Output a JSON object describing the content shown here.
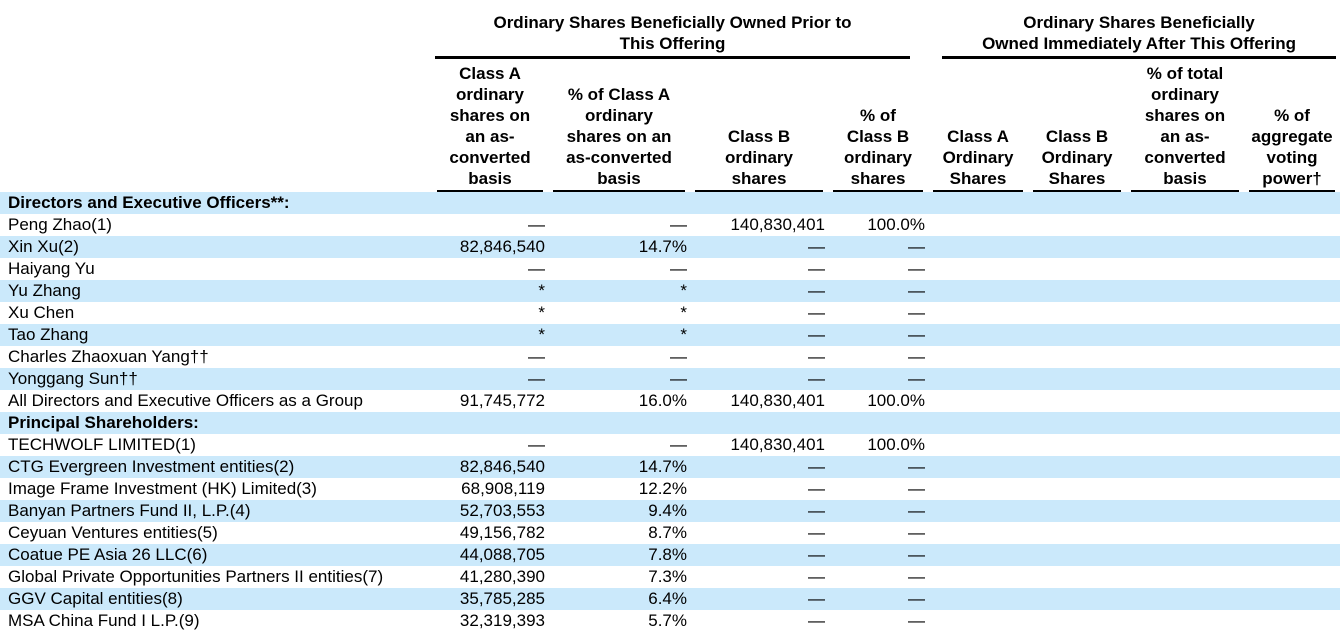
{
  "document": {
    "title": "Beneficial Ownership Table",
    "kind": "share-ownership-table"
  },
  "colors": {
    "row_highlight": "#cbe9fb",
    "text": "#000000",
    "rule": "#000000"
  },
  "header": {
    "group_prior": "Ordinary Shares Beneficially Owned Prior to\nThis Offering",
    "group_after": "Ordinary Shares Beneficially\nOwned Immediately After This Offering",
    "columns": [
      "Class A\nordinary\nshares on\nan as-\nconverted\nbasis",
      "% of Class A\nordinary\nshares on an\nas-converted\nbasis",
      "Class B\nordinary\nshares",
      "% of\nClass B\nordinary\nshares",
      "Class A\nOrdinary\nShares",
      "Class B\nOrdinary\nShares",
      "% of total\nordinary\nshares on\nan as-\nconverted\nbasis",
      "% of\naggregate\nvoting\npower†"
    ]
  },
  "table": {
    "rows": [
      {
        "section": "Directors and Executive Officers**:",
        "highlighted": true
      },
      {
        "name": "Peng Zhao(1)",
        "values": [
          "—",
          "—",
          "140,830,401",
          "100.0%",
          "",
          "",
          "",
          ""
        ],
        "highlighted": false
      },
      {
        "name": "Xin Xu(2)",
        "values": [
          "82,846,540",
          "14.7%",
          "—",
          "—",
          "",
          "",
          "",
          ""
        ],
        "highlighted": true
      },
      {
        "name": "Haiyang Yu",
        "values": [
          "—",
          "—",
          "—",
          "—",
          "",
          "",
          "",
          ""
        ],
        "highlighted": false
      },
      {
        "name": "Yu Zhang",
        "values": [
          "*",
          "*",
          "—",
          "—",
          "",
          "",
          "",
          ""
        ],
        "highlighted": true
      },
      {
        "name": "Xu Chen",
        "values": [
          "*",
          "*",
          "—",
          "—",
          "",
          "",
          "",
          ""
        ],
        "highlighted": false
      },
      {
        "name": "Tao Zhang",
        "values": [
          "*",
          "*",
          "—",
          "—",
          "",
          "",
          "",
          ""
        ],
        "highlighted": true
      },
      {
        "name": "Charles Zhaoxuan Yang††",
        "values": [
          "—",
          "—",
          "—",
          "—",
          "",
          "",
          "",
          ""
        ],
        "highlighted": false
      },
      {
        "name": "Yonggang Sun††",
        "values": [
          "—",
          "—",
          "—",
          "—",
          "",
          "",
          "",
          ""
        ],
        "highlighted": true
      },
      {
        "name": "All Directors and Executive Officers as a Group",
        "values": [
          "91,745,772",
          "16.0%",
          "140,830,401",
          "100.0%",
          "",
          "",
          "",
          ""
        ],
        "highlighted": false
      },
      {
        "section": "Principal Shareholders:",
        "highlighted": true
      },
      {
        "name": "TECHWOLF LIMITED(1)",
        "values": [
          "—",
          "—",
          "140,830,401",
          "100.0%",
          "",
          "",
          "",
          ""
        ],
        "highlighted": false
      },
      {
        "name": "CTG Evergreen Investment entities(2)",
        "values": [
          "82,846,540",
          "14.7%",
          "—",
          "—",
          "",
          "",
          "",
          ""
        ],
        "highlighted": true
      },
      {
        "name": "Image Frame Investment (HK) Limited(3)",
        "values": [
          "68,908,119",
          "12.2%",
          "—",
          "—",
          "",
          "",
          "",
          ""
        ],
        "highlighted": false
      },
      {
        "name": "Banyan Partners Fund II, L.P.(4)",
        "values": [
          "52,703,553",
          "9.4%",
          "—",
          "—",
          "",
          "",
          "",
          ""
        ],
        "highlighted": true
      },
      {
        "name": "Ceyuan Ventures entities(5)",
        "values": [
          "49,156,782",
          "8.7%",
          "—",
          "—",
          "",
          "",
          "",
          ""
        ],
        "highlighted": false
      },
      {
        "name": "Coatue PE Asia 26 LLC(6)",
        "values": [
          "44,088,705",
          "7.8%",
          "—",
          "—",
          "",
          "",
          "",
          ""
        ],
        "highlighted": true
      },
      {
        "name": "Global Private Opportunities Partners II entities(7)",
        "values": [
          "41,280,390",
          "7.3%",
          "—",
          "—",
          "",
          "",
          "",
          ""
        ],
        "highlighted": false
      },
      {
        "name": "GGV Capital entities(8)",
        "values": [
          "35,785,285",
          "6.4%",
          "—",
          "—",
          "",
          "",
          "",
          ""
        ],
        "highlighted": true
      },
      {
        "name": "MSA China Fund I L.P.(9)",
        "values": [
          "32,319,393",
          "5.7%",
          "—",
          "—",
          "",
          "",
          "",
          ""
        ],
        "highlighted": false
      }
    ]
  }
}
